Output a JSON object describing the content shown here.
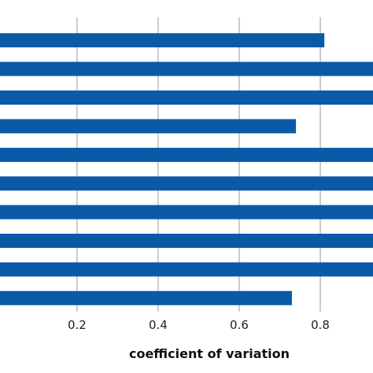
{
  "chart_data": {
    "type": "bar",
    "orientation": "horizontal",
    "title": "",
    "xlabel": "coefficient of variation",
    "ylabel": "",
    "xlim": [
      0.01,
      0.93
    ],
    "xticks": [
      0.2,
      0.4,
      0.6,
      0.8
    ],
    "xtick_labels": [
      "0.2",
      "0.4",
      "0.6",
      "0.8"
    ],
    "grid": "vertical",
    "legend": "none",
    "bar_color": "#0a5aa8",
    "grid_color": "#9a9a9a",
    "categories": [
      "",
      "",
      "",
      "",
      "",
      "",
      "",
      "",
      "",
      ""
    ],
    "values": [
      0.81,
      0.95,
      0.95,
      0.74,
      0.95,
      0.95,
      0.95,
      0.95,
      0.95,
      0.73
    ]
  }
}
